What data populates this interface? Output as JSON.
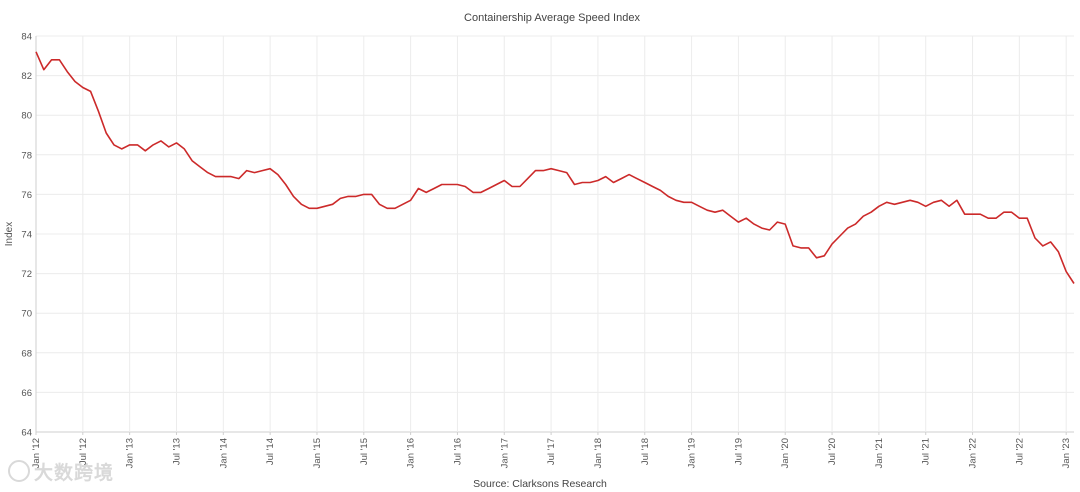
{
  "chart_data": {
    "type": "line",
    "title": "Containership Average Speed Index",
    "xlabel": "",
    "ylabel": "Index",
    "source": "Source: Clarksons Research",
    "ylim": [
      64,
      84
    ],
    "yticks": [
      64,
      66,
      68,
      70,
      72,
      74,
      76,
      78,
      80,
      82,
      84
    ],
    "grid": true,
    "x_tick_labels": [
      "Jan '12",
      "Jul '12",
      "Jan '13",
      "Jul '13",
      "Jan '14",
      "Jul '14",
      "Jan '15",
      "Jul '15",
      "Jan '16",
      "Jul '16",
      "Jan '17",
      "Jul '17",
      "Jan '18",
      "Jul '18",
      "Jan '19",
      "Jul '19",
      "Jan '20",
      "Jul '20",
      "Jan '21",
      "Jul '21",
      "Jan '22",
      "Jul '22",
      "Jan '23"
    ],
    "x_start": "Jan 2012",
    "frequency": "monthly",
    "series": [
      {
        "name": "Containership Average Speed Index",
        "color": "#cc2a2a",
        "values": [
          83.2,
          82.3,
          82.8,
          82.8,
          82.2,
          81.7,
          81.4,
          81.2,
          80.2,
          79.1,
          78.5,
          78.3,
          78.5,
          78.5,
          78.2,
          78.5,
          78.7,
          78.4,
          78.6,
          78.3,
          77.7,
          77.4,
          77.1,
          76.9,
          76.9,
          76.9,
          76.8,
          77.2,
          77.1,
          77.2,
          77.3,
          77.0,
          76.5,
          75.9,
          75.5,
          75.3,
          75.3,
          75.4,
          75.5,
          75.8,
          75.9,
          75.9,
          76.0,
          76.0,
          75.5,
          75.3,
          75.3,
          75.5,
          75.7,
          76.3,
          76.1,
          76.3,
          76.5,
          76.5,
          76.5,
          76.4,
          76.1,
          76.1,
          76.3,
          76.5,
          76.7,
          76.4,
          76.4,
          76.8,
          77.2,
          77.2,
          77.3,
          77.2,
          77.1,
          76.5,
          76.6,
          76.6,
          76.7,
          76.9,
          76.6,
          76.8,
          77.0,
          76.8,
          76.6,
          76.4,
          76.2,
          75.9,
          75.7,
          75.6,
          75.6,
          75.4,
          75.2,
          75.1,
          75.2,
          74.9,
          74.6,
          74.8,
          74.5,
          74.3,
          74.2,
          74.6,
          74.5,
          73.4,
          73.3,
          73.3,
          72.8,
          72.9,
          73.5,
          73.9,
          74.3,
          74.5,
          74.9,
          75.1,
          75.4,
          75.6,
          75.5,
          75.6,
          75.7,
          75.6,
          75.4,
          75.6,
          75.7,
          75.4,
          75.7,
          75.0,
          75.0,
          75.0,
          74.8,
          74.8,
          75.1,
          75.1,
          74.8,
          74.8,
          73.8,
          73.4,
          73.6,
          73.1,
          72.1,
          71.5
        ]
      }
    ]
  },
  "watermark": "大数跨境"
}
